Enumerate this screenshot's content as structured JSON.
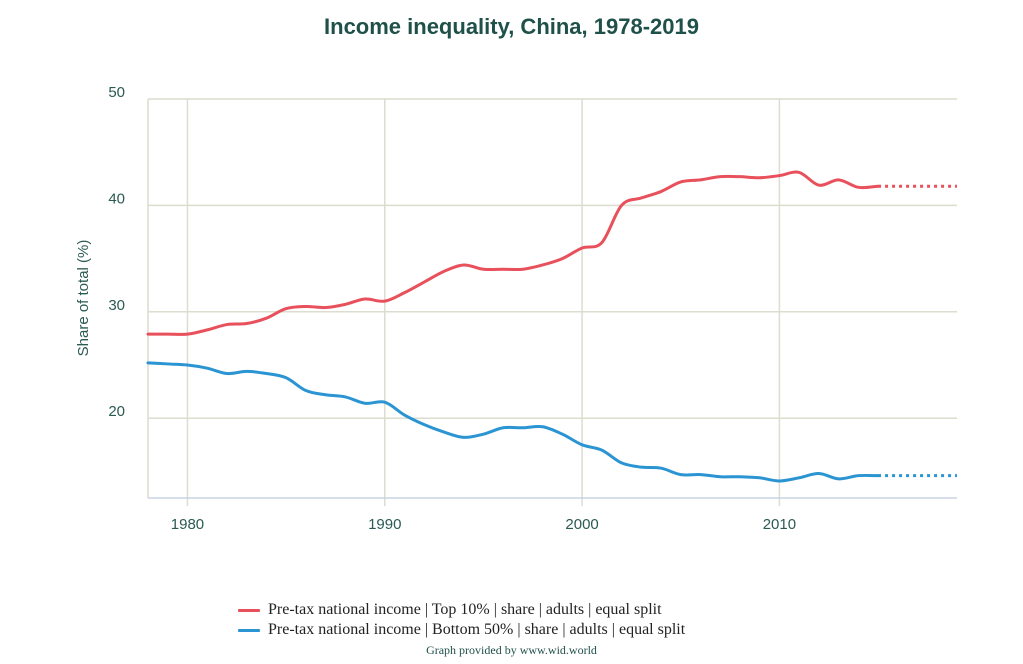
{
  "chart_data": {
    "type": "line",
    "title": "Income inequality, China, 1978-2019",
    "xlabel": "",
    "ylabel": "Share of total (%)",
    "xlim": [
      1978,
      2019
    ],
    "ylim": [
      12.5,
      50
    ],
    "x_ticks": [
      1980,
      1990,
      2000,
      2010
    ],
    "y_ticks": [
      20,
      30,
      40,
      50
    ],
    "grid": true,
    "legend_position": "bottom",
    "x": [
      1978,
      1979,
      1980,
      1981,
      1982,
      1983,
      1984,
      1985,
      1986,
      1987,
      1988,
      1989,
      1990,
      1991,
      1992,
      1993,
      1994,
      1995,
      1996,
      1997,
      1998,
      1999,
      2000,
      2001,
      2002,
      2003,
      2004,
      2005,
      2006,
      2007,
      2008,
      2009,
      2010,
      2011,
      2012,
      2013,
      2014,
      2015
    ],
    "series": [
      {
        "name": "Pre-tax national income | Top 10% | share | adults | equal split",
        "color": "#e8505b",
        "values": [
          27.9,
          27.9,
          27.9,
          28.3,
          28.8,
          28.9,
          29.4,
          30.3,
          30.5,
          30.4,
          30.7,
          31.2,
          31.0,
          31.8,
          32.8,
          33.8,
          34.4,
          34.0,
          34.0,
          34.0,
          34.4,
          35.0,
          36.0,
          36.5,
          40.0,
          40.7,
          41.3,
          42.2,
          42.4,
          42.7,
          42.7,
          42.6,
          42.8,
          43.1,
          41.9,
          42.4,
          41.7,
          41.8
        ],
        "extension": {
          "x": [
            2015,
            2019
          ],
          "values": [
            41.8,
            41.8
          ],
          "style": "dotted"
        }
      },
      {
        "name": "Pre-tax national income | Bottom 50% | share | adults | equal split",
        "color": "#2b94d3",
        "values": [
          25.2,
          25.1,
          25.0,
          24.7,
          24.2,
          24.4,
          24.2,
          23.8,
          22.6,
          22.2,
          22.0,
          21.4,
          21.5,
          20.3,
          19.4,
          18.7,
          18.2,
          18.5,
          19.1,
          19.1,
          19.2,
          18.5,
          17.5,
          17.0,
          15.8,
          15.4,
          15.3,
          14.7,
          14.7,
          14.5,
          14.5,
          14.4,
          14.1,
          14.4,
          14.8,
          14.3,
          14.6,
          14.6
        ],
        "extension": {
          "x": [
            2015,
            2019
          ],
          "values": [
            14.6,
            14.6
          ],
          "style": "dotted"
        }
      }
    ]
  },
  "credit": "Graph provided by www.wid.world"
}
